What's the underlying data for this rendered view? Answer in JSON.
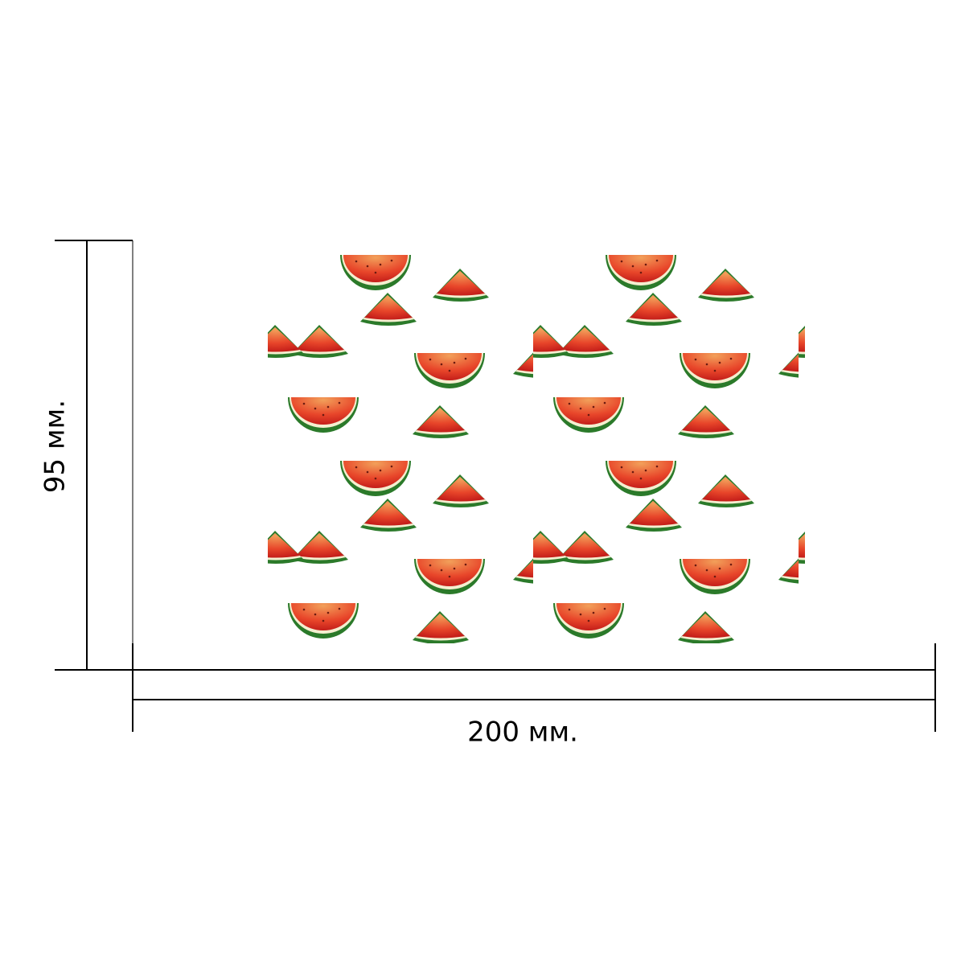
{
  "dimensions": {
    "height_label": "95 мм.",
    "width_label": "200 мм."
  }
}
